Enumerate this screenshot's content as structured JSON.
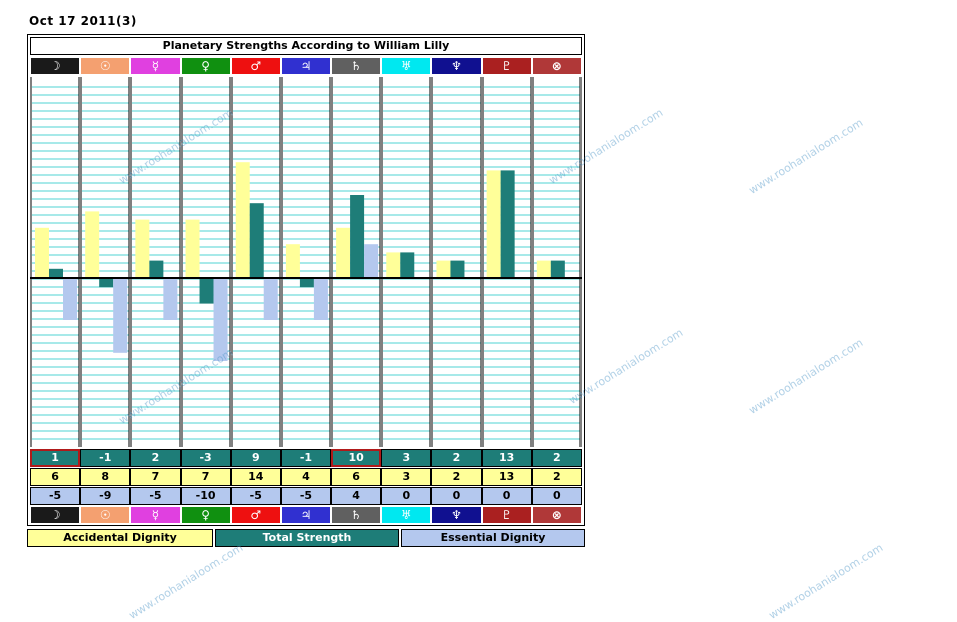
{
  "header": {
    "date_label": "Oct 17 2011(3)"
  },
  "chart_data": {
    "type": "bar",
    "title": "Planetary Strengths According to William Lilly",
    "categories": [
      "Moon",
      "Sun",
      "Mercury",
      "Venus",
      "Mars",
      "Jupiter",
      "Saturn",
      "Uranus",
      "Neptune",
      "Pluto",
      "Part of Fortune"
    ],
    "symbols": [
      "☽",
      "☉",
      "☿",
      "♀",
      "♂",
      "♃",
      "♄",
      "♅",
      "♆",
      "♇",
      "⊗"
    ],
    "symbol_colors": [
      "#1a1a1a",
      "#f4a070",
      "#e040e0",
      "#109010",
      "#ee1010",
      "#3030d0",
      "#606060",
      "#00e8f0",
      "#101090",
      "#aa2020",
      "#b03838"
    ],
    "series": [
      {
        "name": "Accidental Dignity",
        "color": "#ffff99",
        "values": [
          6,
          8,
          7,
          7,
          14,
          4,
          6,
          3,
          2,
          13,
          2
        ]
      },
      {
        "name": "Total Strength",
        "color": "#1e7d78",
        "values": [
          1,
          -1,
          2,
          -3,
          9,
          -1,
          10,
          3,
          2,
          13,
          2
        ]
      },
      {
        "name": "Essential Dignity",
        "color": "#b4c8ee",
        "values": [
          -5,
          -9,
          -5,
          -10,
          -5,
          -5,
          4,
          0,
          0,
          0,
          0
        ]
      }
    ],
    "highlighted_columns": [
      "Moon",
      "Saturn"
    ],
    "ylim": [
      -20,
      20
    ],
    "grid": true
  },
  "legend": {
    "accidental": "Accidental Dignity",
    "total": "Total Strength",
    "essential": "Essential Dignity"
  },
  "watermark": "www.roohanialoom.com"
}
